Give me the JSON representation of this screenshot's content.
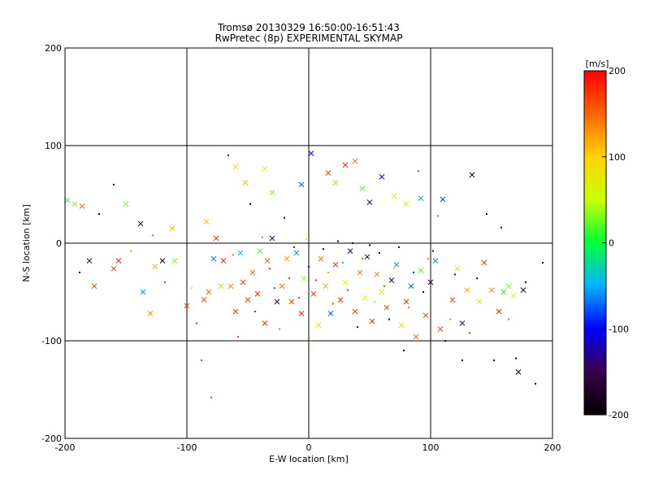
{
  "chart_data": {
    "type": "scatter",
    "title": "Tromsø 20130329 16:50:00-16:51:43",
    "subtitle": "RwPretec (8p) EXPERIMENTAL SKYMAP",
    "xlabel": "E-W location [km]",
    "ylabel": "N-S location [km]",
    "xlim": [
      -200,
      200
    ],
    "ylim": [
      -200,
      200
    ],
    "x_ticks": [
      -200,
      -100,
      0,
      100,
      200
    ],
    "y_ticks": [
      -200,
      -100,
      0,
      100,
      200
    ],
    "grid": true,
    "colorbar": {
      "label": "[m/s]",
      "range": [
        -200,
        200
      ],
      "ticks": [
        200,
        100,
        0,
        -100,
        -200
      ],
      "colors": [
        "#000000",
        "#3a004a",
        "#0000ff",
        "#00b4ff",
        "#00ff3c",
        "#c8ff00",
        "#ffd200",
        "#ff6400",
        "#ff0000"
      ]
    },
    "series": [
      {
        "marker": "x",
        "points": [
          [
            -198,
            44,
            10
          ],
          [
            -192,
            40,
            30
          ],
          [
            -186,
            38,
            150
          ],
          [
            -180,
            -18,
            -150
          ],
          [
            -176,
            -44,
            175
          ],
          [
            -160,
            -26,
            170
          ],
          [
            -156,
            -18,
            180
          ],
          [
            -150,
            40,
            30
          ],
          [
            -138,
            20,
            -180
          ],
          [
            -136,
            -50,
            -60
          ],
          [
            -130,
            -72,
            130
          ],
          [
            -126,
            -24,
            120
          ],
          [
            -120,
            -18,
            -190
          ],
          [
            -110,
            -18,
            30
          ],
          [
            -112,
            15,
            110
          ],
          [
            -100,
            -64,
            175
          ],
          [
            -86,
            -58,
            170
          ],
          [
            -84,
            22,
            110
          ],
          [
            -82,
            -50,
            150
          ],
          [
            -78,
            -16,
            -70
          ],
          [
            -76,
            5,
            175
          ],
          [
            -72,
            -44,
            40
          ],
          [
            -70,
            -18,
            180
          ],
          [
            -64,
            -44,
            140
          ],
          [
            -60,
            -70,
            175
          ],
          [
            -56,
            -10,
            -40
          ],
          [
            -54,
            -40,
            170
          ],
          [
            -50,
            -58,
            175
          ],
          [
            -46,
            -30,
            150
          ],
          [
            -42,
            -52,
            180
          ],
          [
            -40,
            -8,
            20
          ],
          [
            -36,
            -82,
            175
          ],
          [
            -34,
            -18,
            160
          ],
          [
            -30,
            5,
            -140
          ],
          [
            -26,
            -60,
            -160
          ],
          [
            -22,
            -44,
            150
          ],
          [
            -18,
            -16,
            130
          ],
          [
            -14,
            -60,
            170
          ],
          [
            -10,
            -10,
            -60
          ],
          [
            -6,
            -72,
            180
          ],
          [
            -4,
            -36,
            40
          ],
          [
            4,
            -52,
            175
          ],
          [
            8,
            -84,
            100
          ],
          [
            10,
            -16,
            150
          ],
          [
            14,
            -44,
            120
          ],
          [
            18,
            -72,
            -70
          ],
          [
            22,
            -22,
            175
          ],
          [
            26,
            -58,
            180
          ],
          [
            30,
            -40,
            60
          ],
          [
            34,
            -8,
            -140
          ],
          [
            38,
            -70,
            170
          ],
          [
            42,
            -30,
            140
          ],
          [
            46,
            -56,
            60
          ],
          [
            48,
            -14,
            -180
          ],
          [
            52,
            -80,
            180
          ],
          [
            56,
            -32,
            130
          ],
          [
            60,
            -50,
            80
          ],
          [
            64,
            -66,
            170
          ],
          [
            68,
            -38,
            -160
          ],
          [
            72,
            -22,
            -60
          ],
          [
            76,
            -84,
            100
          ],
          [
            80,
            -60,
            180
          ],
          [
            84,
            -44,
            -80
          ],
          [
            88,
            -96,
            150
          ],
          [
            92,
            -28,
            20
          ],
          [
            96,
            -74,
            170
          ],
          [
            100,
            -40,
            -170
          ],
          [
            104,
            -18,
            -60
          ],
          [
            108,
            -88,
            160
          ],
          [
            110,
            45,
            -80
          ],
          [
            118,
            -58,
            170
          ],
          [
            122,
            -26,
            40
          ],
          [
            126,
            -82,
            -150
          ],
          [
            130,
            -48,
            120
          ],
          [
            134,
            70,
            -190
          ],
          [
            140,
            -60,
            60
          ],
          [
            144,
            -20,
            170
          ],
          [
            150,
            -48,
            130
          ],
          [
            156,
            -70,
            180
          ],
          [
            160,
            -50,
            10
          ],
          [
            164,
            -44,
            30
          ],
          [
            168,
            -54,
            60
          ],
          [
            172,
            -132,
            -190
          ],
          [
            176,
            -48,
            -170
          ],
          [
            -6,
            60,
            -70
          ],
          [
            -30,
            52,
            30
          ],
          [
            -36,
            76,
            70
          ],
          [
            -52,
            62,
            110
          ],
          [
            -60,
            78,
            90
          ],
          [
            2,
            92,
            -100
          ],
          [
            16,
            72,
            170
          ],
          [
            22,
            62,
            30
          ],
          [
            30,
            80,
            180
          ],
          [
            38,
            84,
            150
          ],
          [
            44,
            56,
            20
          ],
          [
            50,
            42,
            -140
          ],
          [
            60,
            68,
            -120
          ],
          [
            70,
            48,
            60
          ],
          [
            80,
            40,
            70
          ],
          [
            92,
            46,
            -60
          ]
        ]
      },
      {
        "marker": "dot",
        "points": [
          [
            -188,
            -30,
            -190
          ],
          [
            -172,
            30,
            -190
          ],
          [
            -160,
            60,
            -190
          ],
          [
            -146,
            -8,
            130
          ],
          [
            -128,
            8,
            150
          ],
          [
            -118,
            -40,
            175
          ],
          [
            -96,
            -46,
            60
          ],
          [
            -92,
            -82,
            170
          ],
          [
            -88,
            -120,
            160
          ],
          [
            -80,
            -158,
            175
          ],
          [
            -66,
            90,
            -100
          ],
          [
            -62,
            -12,
            140
          ],
          [
            -58,
            -96,
            170
          ],
          [
            -48,
            40,
            -120
          ],
          [
            -44,
            -70,
            180
          ],
          [
            -38,
            6,
            150
          ],
          [
            -32,
            -26,
            175
          ],
          [
            -28,
            -46,
            -70
          ],
          [
            -24,
            -88,
            140
          ],
          [
            -20,
            26,
            -170
          ],
          [
            -16,
            -36,
            180
          ],
          [
            -12,
            -4,
            -150
          ],
          [
            -8,
            -56,
            170
          ],
          [
            -2,
            4,
            80
          ],
          [
            0,
            -24,
            -100
          ],
          [
            2,
            -100,
            140
          ],
          [
            6,
            -38,
            175
          ],
          [
            12,
            -6,
            -180
          ],
          [
            16,
            -30,
            120
          ],
          [
            20,
            -62,
            160
          ],
          [
            24,
            2,
            -160
          ],
          [
            28,
            -20,
            -40
          ],
          [
            32,
            -48,
            170
          ],
          [
            36,
            0,
            -190
          ],
          [
            40,
            -86,
            -110
          ],
          [
            44,
            -16,
            150
          ],
          [
            50,
            -2,
            -170
          ],
          [
            54,
            -60,
            40
          ],
          [
            58,
            -10,
            -190
          ],
          [
            62,
            -44,
            170
          ],
          [
            66,
            -78,
            -130
          ],
          [
            70,
            -26,
            100
          ],
          [
            74,
            -4,
            -170
          ],
          [
            78,
            -110,
            -180
          ],
          [
            82,
            -66,
            150
          ],
          [
            86,
            -30,
            -90
          ],
          [
            90,
            74,
            170
          ],
          [
            94,
            -50,
            -180
          ],
          [
            98,
            -16,
            140
          ],
          [
            102,
            -8,
            -170
          ],
          [
            106,
            28,
            150
          ],
          [
            112,
            -100,
            -180
          ],
          [
            116,
            -78,
            130
          ],
          [
            120,
            -32,
            -150
          ],
          [
            126,
            -120,
            -180
          ],
          [
            132,
            -92,
            170
          ],
          [
            138,
            -36,
            -160
          ],
          [
            146,
            30,
            -190
          ],
          [
            152,
            -120,
            -190
          ],
          [
            158,
            16,
            -170
          ],
          [
            164,
            -78,
            140
          ],
          [
            170,
            -118,
            -190
          ],
          [
            178,
            -40,
            -150
          ],
          [
            186,
            -144,
            -190
          ],
          [
            192,
            -20,
            -190
          ]
        ]
      }
    ]
  }
}
